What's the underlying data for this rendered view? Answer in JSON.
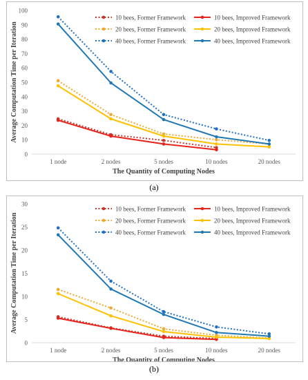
{
  "chart_data": [
    {
      "type": "line",
      "panel_label": "a",
      "xlabel": "The Quantity of Computing Nodes",
      "ylabel": "Average Computation Time per Iteration",
      "categories": [
        "1 node",
        "2 nodes",
        "5 nodes",
        "10 nodes",
        "20 nodes"
      ],
      "ylim": [
        0,
        100
      ],
      "yticks": [
        0,
        10,
        20,
        30,
        40,
        50,
        60,
        70,
        80,
        90,
        100
      ],
      "grid": false,
      "legend_position": "top-right",
      "series": [
        {
          "name": "10 bees, Former Framework",
          "style": "dotted",
          "color": "#c0392b",
          "values": [
            24.5,
            13.5,
            9.5,
            4.5,
            null
          ]
        },
        {
          "name": "10 bees, Improved Framework",
          "style": "solid",
          "color": "#e8221a",
          "values": [
            23.5,
            12.5,
            7.0,
            3.0,
            null
          ]
        },
        {
          "name": "20 bees, Former Framework",
          "style": "dotted",
          "color": "#f0a830",
          "values": [
            51.0,
            27.5,
            14.0,
            10.0,
            7.0
          ]
        },
        {
          "name": "20 bees, Improved Framework",
          "style": "solid",
          "color": "#ffc000",
          "values": [
            47.5,
            24.5,
            12.5,
            7.0,
            5.0
          ]
        },
        {
          "name": "40 bees, Former Framework",
          "style": "dotted",
          "color": "#1f6fc4",
          "values": [
            95.5,
            57.5,
            27.5,
            17.5,
            9.5
          ]
        },
        {
          "name": "40 bees, Improved Framework",
          "style": "solid",
          "color": "#1f77b4",
          "values": [
            90.5,
            49.5,
            24.0,
            12.0,
            7.0
          ]
        }
      ],
      "caption": "(a)"
    },
    {
      "type": "line",
      "panel_label": "b",
      "xlabel": "The Quantity of Computing Nodes",
      "ylabel": "Average Computation Time per Iteration",
      "categories": [
        "1 node",
        "2 nodes",
        "5 nodes",
        "10 nodes",
        "20 nodes"
      ],
      "ylim": [
        0,
        30
      ],
      "yticks": [
        0,
        5,
        10,
        15,
        20,
        25,
        30
      ],
      "grid": false,
      "legend_position": "top-right",
      "series": [
        {
          "name": "10 bees, Former Framework",
          "style": "dotted",
          "color": "#c0392b",
          "values": [
            5.6,
            3.2,
            1.4,
            0.9,
            null
          ]
        },
        {
          "name": "10 bees, Improved Framework",
          "style": "solid",
          "color": "#e8221a",
          "values": [
            5.3,
            3.1,
            1.1,
            0.7,
            null
          ]
        },
        {
          "name": "20 bees, Former Framework",
          "style": "dotted",
          "color": "#f0a830",
          "values": [
            11.5,
            7.5,
            3.0,
            1.6,
            1.0
          ]
        },
        {
          "name": "20 bees, Improved Framework",
          "style": "solid",
          "color": "#ffc000",
          "values": [
            10.6,
            5.8,
            2.4,
            1.2,
            0.9
          ]
        },
        {
          "name": "40 bees, Former Framework",
          "style": "dotted",
          "color": "#1f6fc4",
          "values": [
            24.8,
            13.3,
            6.7,
            3.4,
            1.9
          ]
        },
        {
          "name": "40 bees, Improved Framework",
          "style": "solid",
          "color": "#1f77b4",
          "values": [
            23.3,
            11.6,
            6.1,
            2.2,
            1.4
          ]
        }
      ],
      "caption": "(b)"
    }
  ]
}
